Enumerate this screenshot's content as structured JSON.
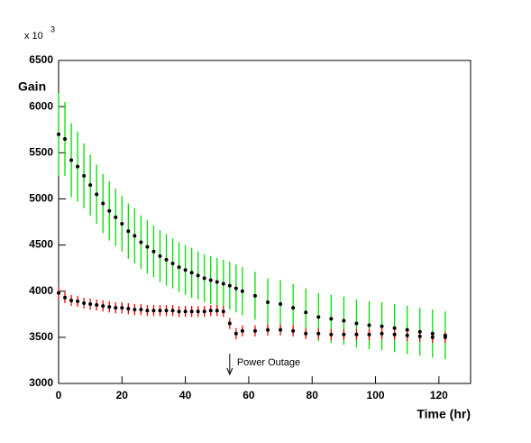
{
  "chart_data": {
    "type": "scatter",
    "y_label": "Gain",
    "x_label": "Time (hr)",
    "y_multiplier": "x 10",
    "y_multiplier_exponent": "3",
    "xlim": [
      0,
      130
    ],
    "ylim": [
      3000,
      6500
    ],
    "xticks": [
      0,
      20,
      40,
      60,
      80,
      100,
      120
    ],
    "yticks": [
      3000,
      3500,
      4000,
      4500,
      5000,
      5500,
      6000,
      6500
    ],
    "marker_color": "#000000",
    "annotations": [
      {
        "text": "Power Outage",
        "x": 54
      }
    ],
    "x": [
      0,
      2,
      4,
      6,
      8,
      10,
      12,
      14,
      16,
      18,
      20,
      22,
      24,
      26,
      28,
      30,
      32,
      34,
      36,
      38,
      40,
      42,
      44,
      46,
      48,
      50,
      52,
      54,
      56,
      58,
      62,
      66,
      70,
      74,
      78,
      82,
      86,
      90,
      94,
      98,
      102,
      106,
      110,
      114,
      118,
      122
    ],
    "series": [
      {
        "color": "#00e000",
        "values": [
          5700,
          5650,
          5420,
          5350,
          5250,
          5150,
          5050,
          4950,
          4870,
          4800,
          4730,
          4650,
          4600,
          4530,
          4480,
          4430,
          4380,
          4340,
          4300,
          4260,
          4230,
          4200,
          4170,
          4140,
          4120,
          4100,
          4080,
          4060,
          4030,
          4000,
          3950,
          3880,
          3860,
          3820,
          3770,
          3720,
          3700,
          3680,
          3650,
          3630,
          3620,
          3600,
          3580,
          3560,
          3540,
          3520
        ],
        "errors": [
          450,
          400,
          400,
          380,
          350,
          330,
          320,
          320,
          320,
          310,
          300,
          300,
          300,
          290,
          290,
          280,
          280,
          280,
          270,
          270,
          270,
          270,
          260,
          260,
          260,
          260,
          260,
          260,
          260,
          260,
          260,
          260,
          260,
          260,
          260,
          260,
          260,
          260,
          260,
          260,
          260,
          260,
          260,
          260,
          260,
          260
        ]
      },
      {
        "color": "#ff0000",
        "values": [
          3980,
          3930,
          3900,
          3890,
          3870,
          3860,
          3850,
          3840,
          3830,
          3820,
          3820,
          3810,
          3800,
          3800,
          3790,
          3790,
          3790,
          3790,
          3790,
          3780,
          3780,
          3780,
          3780,
          3780,
          3790,
          3790,
          3780,
          3650,
          3540,
          3570,
          3570,
          3580,
          3580,
          3570,
          3540,
          3540,
          3530,
          3530,
          3530,
          3530,
          3540,
          3530,
          3520,
          3510,
          3500,
          3500
        ],
        "errors": [
          70,
          60,
          60,
          60,
          60,
          60,
          60,
          60,
          60,
          60,
          60,
          60,
          60,
          60,
          60,
          60,
          60,
          60,
          60,
          60,
          60,
          60,
          60,
          60,
          60,
          60,
          60,
          60,
          60,
          60,
          60,
          60,
          60,
          60,
          60,
          60,
          60,
          60,
          60,
          60,
          60,
          60,
          60,
          60,
          60,
          60
        ]
      }
    ]
  }
}
